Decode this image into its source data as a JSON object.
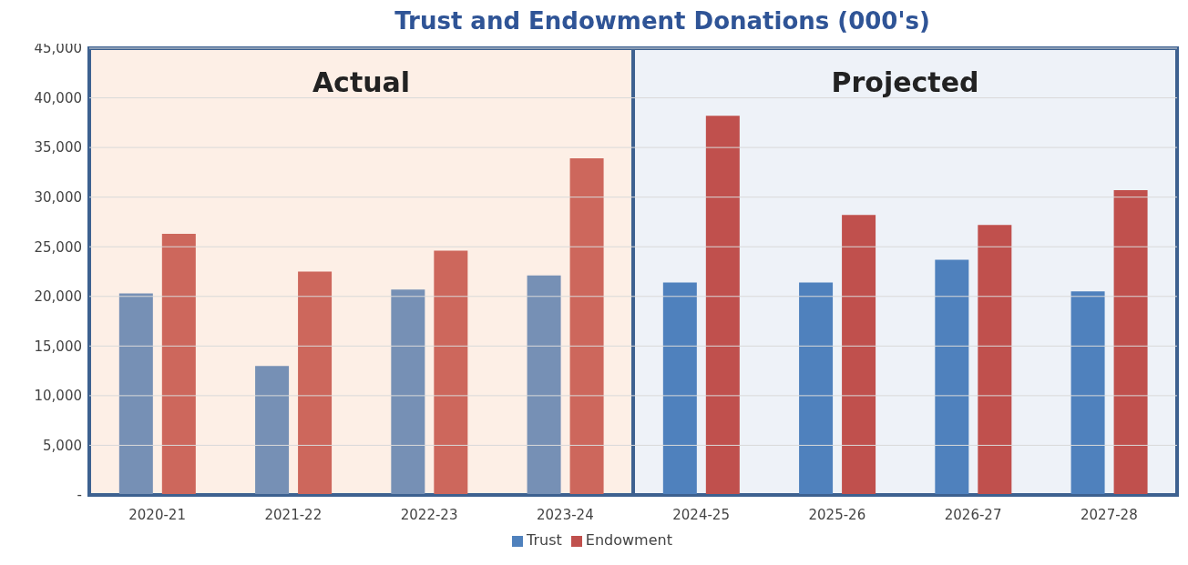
{
  "chart_data": {
    "type": "bar",
    "title": "Trust and Endowment Donations (000's)",
    "categories": [
      "2020-21",
      "2021-22",
      "2022-23",
      "2023-24",
      "2024-25",
      "2025-26",
      "2026-27",
      "2027-28"
    ],
    "series": [
      {
        "name": "Trust",
        "color": "#4f81bd",
        "colors": [
          "#7690b5",
          "#7690b5",
          "#7690b5",
          "#7690b5",
          "#4f81bd",
          "#4f81bd",
          "#4f81bd",
          "#4f81bd"
        ],
        "values": [
          20300,
          13000,
          20700,
          22100,
          21400,
          21400,
          23700,
          20500
        ]
      },
      {
        "name": "Endowment",
        "color": "#c0504d",
        "colors": [
          "#cd675c",
          "#cd675c",
          "#cd675c",
          "#cd675c",
          "#c0504d",
          "#c0504d",
          "#c0504d",
          "#c0504d"
        ],
        "values": [
          26300,
          22500,
          24600,
          33900,
          38200,
          28200,
          27200,
          30700
        ]
      }
    ],
    "ylim": [
      0,
      45000
    ],
    "yticks": [
      {
        "value": 0,
        "label": "-"
      },
      {
        "value": 5000,
        "label": "5,000"
      },
      {
        "value": 10000,
        "label": "10,000"
      },
      {
        "value": 15000,
        "label": "15,000"
      },
      {
        "value": 20000,
        "label": "20,000"
      },
      {
        "value": 25000,
        "label": "25,000"
      },
      {
        "value": 30000,
        "label": "30,000"
      },
      {
        "value": 35000,
        "label": "35,000"
      },
      {
        "value": 40000,
        "label": "40,000"
      },
      {
        "value": 45000,
        "label": "45,000"
      }
    ],
    "bands": [
      {
        "axis": "x",
        "from": "2020-21",
        "to": "2023-24",
        "label": "Actual",
        "color": "#fdefe6"
      },
      {
        "axis": "x",
        "from": "2024-25",
        "to": "2027-28",
        "label": "Projected",
        "color": "#eef2f8"
      }
    ],
    "grid": "y",
    "legend": "bottom"
  }
}
